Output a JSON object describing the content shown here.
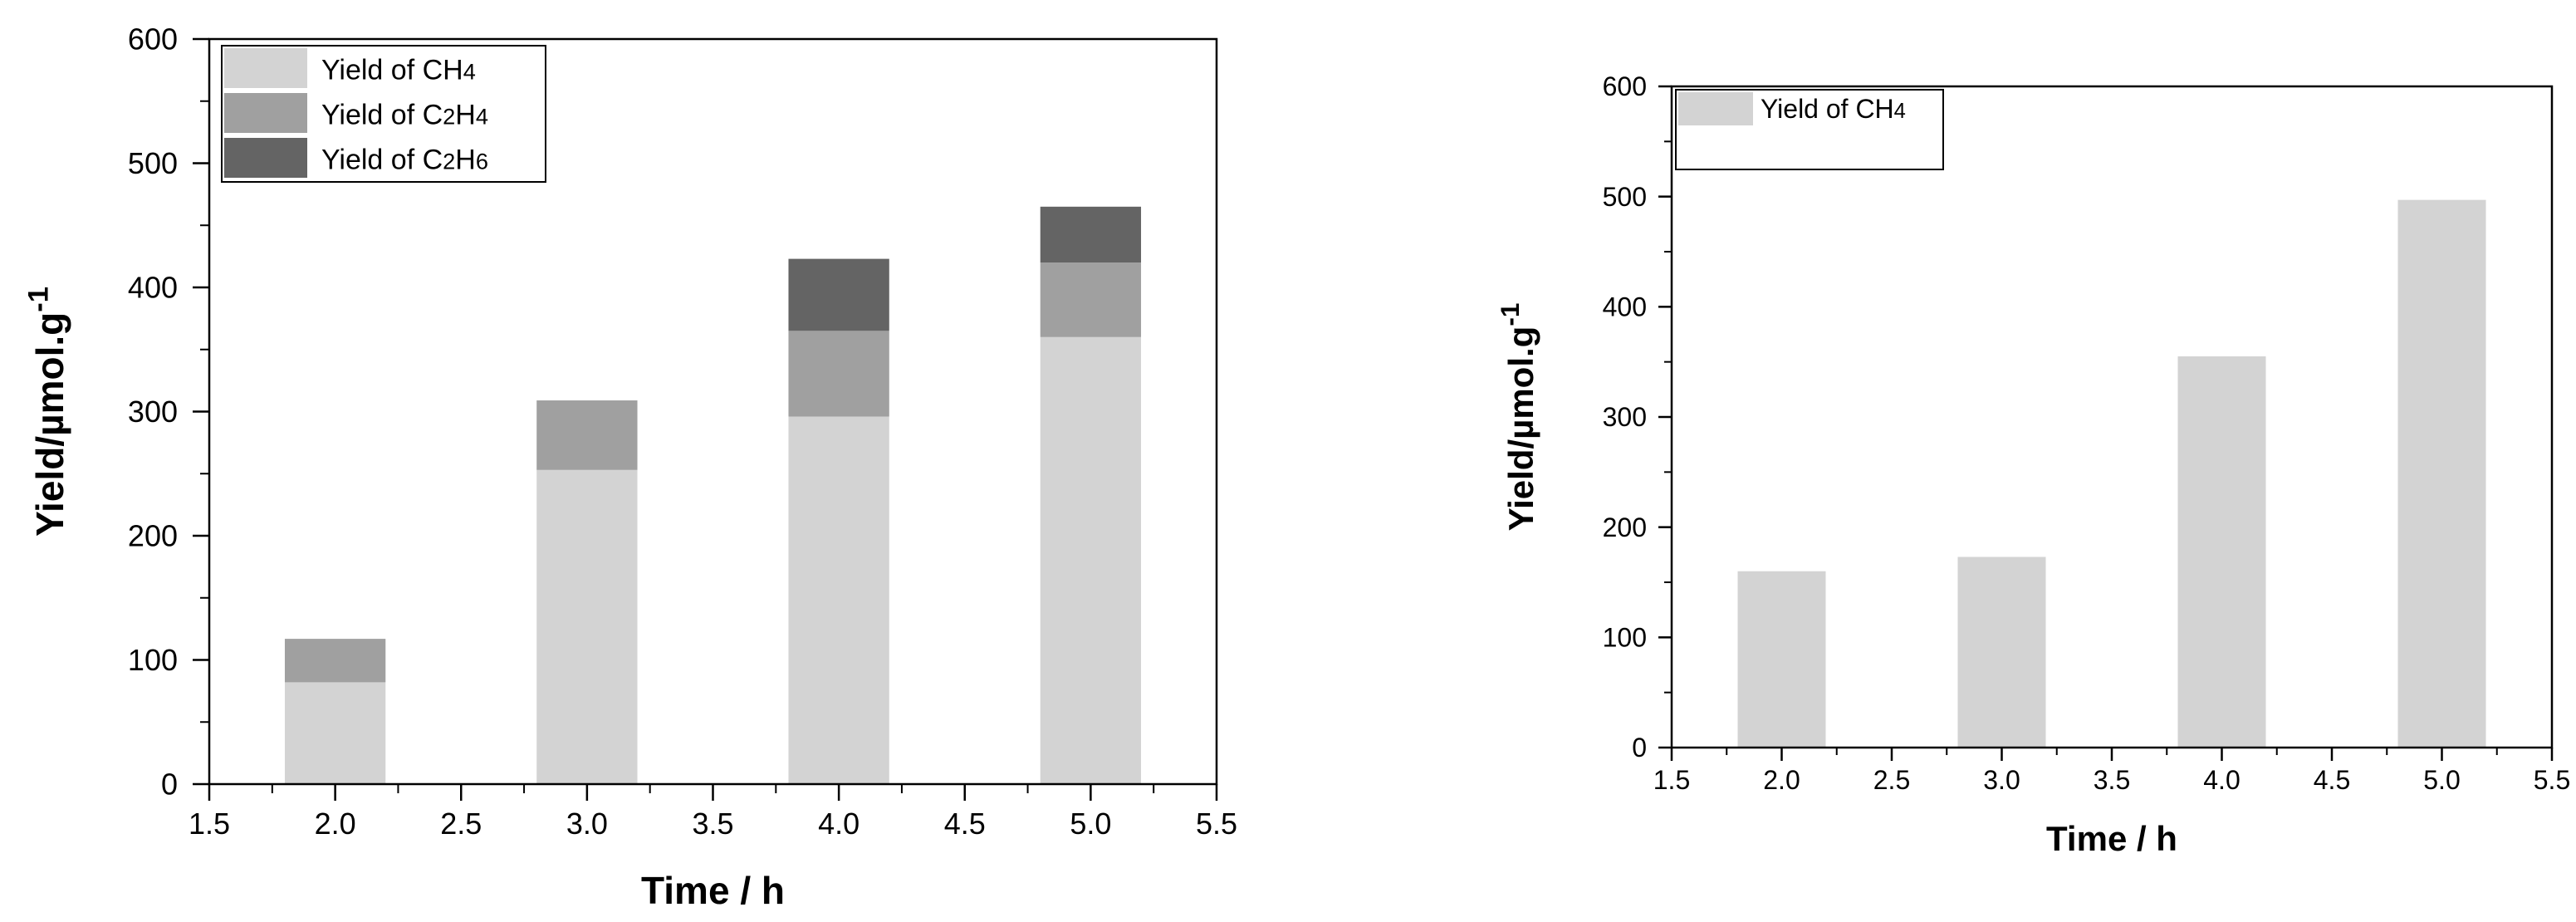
{
  "chart_data": [
    {
      "type": "bar",
      "stacked": true,
      "x": [
        2.0,
        3.0,
        4.0,
        5.0
      ],
      "series": [
        {
          "name": "Yield of CH4",
          "label_parts": [
            {
              "t": "Yield of CH",
              "sub": false
            },
            {
              "t": "4",
              "sub": true
            }
          ],
          "values": [
            82,
            253,
            296,
            360
          ],
          "color": "#d3d3d3"
        },
        {
          "name": "Yield of C2H4",
          "label_parts": [
            {
              "t": "Yield of C",
              "sub": false
            },
            {
              "t": "2",
              "sub": true
            },
            {
              "t": "H",
              "sub": false
            },
            {
              "t": "4",
              "sub": true
            }
          ],
          "values": [
            35,
            56,
            69,
            60
          ],
          "color": "#a0a0a0"
        },
        {
          "name": "Yield of C2H6",
          "label_parts": [
            {
              "t": "Yield of C",
              "sub": false
            },
            {
              "t": "2",
              "sub": true
            },
            {
              "t": "H",
              "sub": false
            },
            {
              "t": "6",
              "sub": true
            }
          ],
          "values": [
            0,
            0,
            58,
            45
          ],
          "color": "#646464"
        }
      ],
      "xlabel": "Time / h",
      "ylabel": "Yield/µmol.g",
      "ylabel_superscript": "-1",
      "xlim": [
        1.5,
        5.5
      ],
      "ylim": [
        0,
        600
      ],
      "xticks": [
        "1.5",
        "2.0",
        "2.5",
        "3.0",
        "3.5",
        "4.0",
        "4.5",
        "5.0",
        "5.5"
      ],
      "yticks": [
        "0",
        "100",
        "200",
        "300",
        "400",
        "500",
        "600"
      ],
      "bar_width": 0.4,
      "grid": false,
      "legend_position": "top-left"
    },
    {
      "type": "bar",
      "stacked": false,
      "x": [
        2.0,
        3.0,
        4.0,
        5.0
      ],
      "series": [
        {
          "name": "Yield of CH4",
          "label_parts": [
            {
              "t": "Yield of CH",
              "sub": false
            },
            {
              "t": "4",
              "sub": true
            }
          ],
          "values": [
            160,
            173,
            355,
            497
          ],
          "color": "#d3d3d3"
        }
      ],
      "xlabel": "Time / h",
      "ylabel": "Yield/µmol.g",
      "ylabel_superscript": "-1",
      "xlim": [
        1.5,
        5.5
      ],
      "ylim": [
        0,
        600
      ],
      "xticks": [
        "1.5",
        "2.0",
        "2.5",
        "3.0",
        "3.5",
        "4.0",
        "4.5",
        "5.0",
        "5.5"
      ],
      "yticks": [
        "0",
        "100",
        "200",
        "300",
        "400",
        "500",
        "600"
      ],
      "bar_width": 0.4,
      "grid": false,
      "legend_position": "top-left"
    }
  ]
}
